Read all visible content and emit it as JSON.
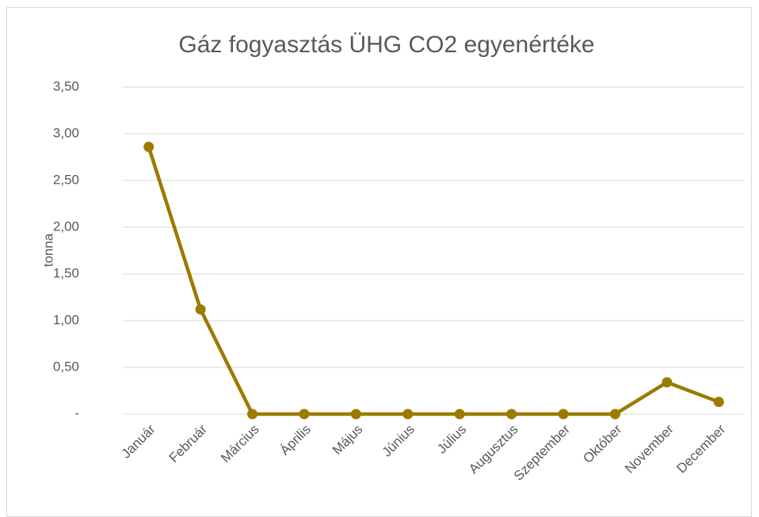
{
  "chart_data": {
    "type": "line",
    "title": "Gáz fogyasztás ÜHG CO2 egyenértéke",
    "y_label": "tonna",
    "categories": [
      "Január",
      "Február",
      "Március",
      "Április",
      "Május",
      "Június",
      "Július",
      "Augusztus",
      "Szeptember",
      "Október",
      "November",
      "December"
    ],
    "series": [
      {
        "color": "#9c7a00",
        "values": [
          2.86,
          1.12,
          0,
          0,
          0,
          0,
          0,
          0,
          0,
          0,
          0.34,
          0.13
        ]
      }
    ],
    "ylim": [
      0,
      3.5
    ],
    "yticks": [
      {
        "value": 0,
        "label": "-"
      },
      {
        "value": 0.5,
        "label": "0,50"
      },
      {
        "value": 1,
        "label": "1,00"
      },
      {
        "value": 1.5,
        "label": "1,50"
      },
      {
        "value": 2,
        "label": "2,00"
      },
      {
        "value": 2.5,
        "label": "2,50"
      },
      {
        "value": 3,
        "label": "3,00"
      },
      {
        "value": 3.5,
        "label": "3,50"
      }
    ],
    "grid": true
  }
}
